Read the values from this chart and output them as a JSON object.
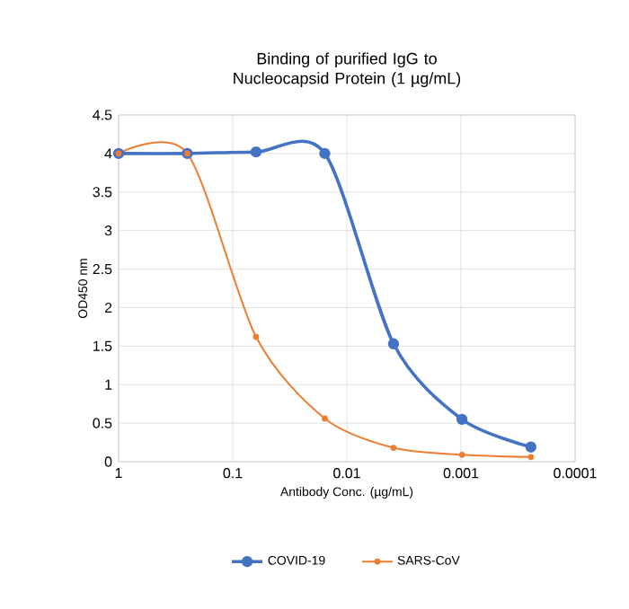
{
  "chart_data": {
    "type": "line",
    "title": "Binding of purified IgG to Nucleocapsid Protein (1 µg/mL)",
    "xlabel": "Antibody Conc. (µg/mL)",
    "ylabel": "OD450 nm",
    "x": [
      1,
      0.25,
      0.0625,
      0.0156,
      0.0039,
      0.00098,
      0.000244
    ],
    "series": [
      {
        "name": "COVID-19",
        "color": "#4472c4",
        "values": [
          4.0,
          4.0,
          4.02,
          4.0,
          1.53,
          0.55,
          0.19
        ]
      },
      {
        "name": "SARS-CoV",
        "color": "#ed7d31",
        "values": [
          4.0,
          4.0,
          1.62,
          0.56,
          0.18,
          0.09,
          0.06
        ]
      }
    ],
    "log": "x",
    "xlim": [
      1,
      0.0001
    ],
    "xticks": [
      1,
      0.1,
      0.01,
      0.001,
      0.0001
    ],
    "ylim": [
      0,
      4.5
    ],
    "yticks": [
      0,
      0.5,
      1,
      1.5,
      2,
      2.5,
      3,
      3.5,
      4,
      4.5
    ],
    "grid": true,
    "legend": "bottom",
    "marker": "circle",
    "line_style": "solid"
  }
}
